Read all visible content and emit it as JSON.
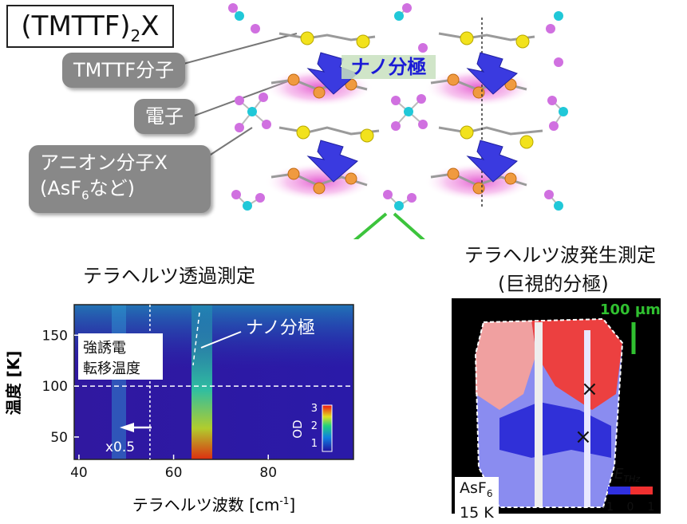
{
  "title": {
    "main": "(TMTTF)",
    "sub": "2",
    "tail": "X"
  },
  "callouts": {
    "molecule": "TMTTF分子",
    "electron": "電子",
    "anion_line1": "アニオン分子X",
    "anion_line2_pre": "(AsF",
    "anion_line2_sub": "6",
    "anion_line2_post": "など)"
  },
  "crystal": {
    "polarization_label": "ナノ分極"
  },
  "arrows": {
    "left_label": "テラヘルツ透過測定",
    "right_label_line1": "テラヘルツ波発生測定",
    "right_label_line2": "(巨視的分極)"
  },
  "heatmap": {
    "ylabel": "温度 [K]",
    "xlabel": "テラヘルツ波数 [cm",
    "xlabel_sup": "-1",
    "xlabel_end": "]",
    "yticks": [
      "150",
      "100",
      "50"
    ],
    "xticks": [
      "40",
      "60",
      "80"
    ],
    "annotation_nano": "ナノ分極",
    "annotation_transition_1": "強誘電",
    "annotation_transition_2": "転移温度",
    "scale_note": "x0.5",
    "cbar_label": "OD",
    "cbar_ticks": [
      "3",
      "2",
      "1"
    ]
  },
  "image_map": {
    "scale_bar": "100 μm",
    "sample_line1": "AsF",
    "sample_sub": "6",
    "temperature": "15 K",
    "cbar_label": "E",
    "cbar_label_sub": "THz",
    "cbar_ticks": [
      "-1",
      "0",
      "1"
    ]
  },
  "chart_data": {
    "type": "heatmap",
    "xlabel": "テラヘルツ波数 [cm-1]",
    "ylabel": "温度 [K]",
    "xlim": [
      39,
      98
    ],
    "ylim": [
      28,
      180
    ],
    "x_ticks": [
      40,
      60,
      80
    ],
    "y_ticks": [
      50,
      100,
      150
    ],
    "colorbar": {
      "label": "OD",
      "ticks": [
        1,
        2,
        3
      ]
    },
    "annotations": [
      {
        "text": "ナノ分極",
        "note": "peak near 65 cm-1 appearing above transition"
      },
      {
        "text": "強誘電転移温度",
        "value_y": 100
      },
      {
        "text": "x0.5",
        "value_x_below": 55
      }
    ],
    "reference_lines": {
      "horizontal_y": 100,
      "vertical_x": 55
    },
    "peaks_cm1": [
      52,
      65
    ]
  }
}
